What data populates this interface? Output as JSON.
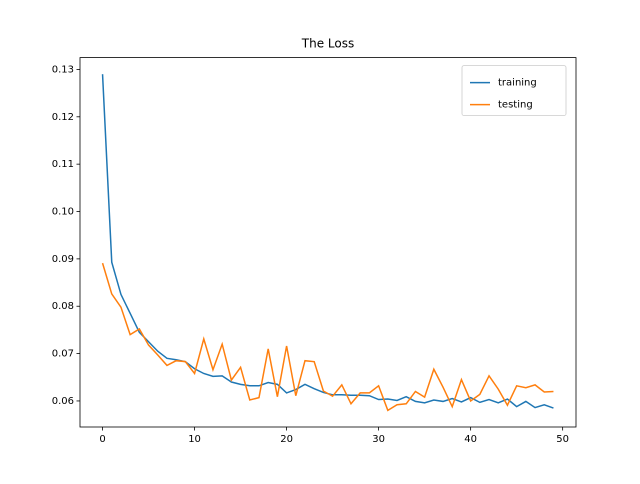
{
  "chart_data": {
    "type": "line",
    "title": "The Loss",
    "x": [
      0,
      1,
      2,
      3,
      4,
      5,
      6,
      7,
      8,
      9,
      10,
      11,
      12,
      13,
      14,
      15,
      16,
      17,
      18,
      19,
      20,
      21,
      22,
      23,
      24,
      25,
      26,
      27,
      28,
      29,
      30,
      31,
      32,
      33,
      34,
      35,
      36,
      37,
      38,
      39,
      40,
      41,
      42,
      43,
      44,
      45,
      46,
      47,
      48,
      49
    ],
    "series": [
      {
        "name": "training",
        "color": "#1f77b4",
        "values": [
          0.129,
          0.0893,
          0.0825,
          0.0785,
          0.0745,
          0.0725,
          0.0705,
          0.069,
          0.0687,
          0.0683,
          0.0668,
          0.0658,
          0.0652,
          0.0653,
          0.064,
          0.0635,
          0.0632,
          0.0632,
          0.0639,
          0.0635,
          0.0617,
          0.0624,
          0.0635,
          0.0626,
          0.0618,
          0.0613,
          0.0613,
          0.0612,
          0.0612,
          0.0611,
          0.0603,
          0.0604,
          0.0601,
          0.0609,
          0.0599,
          0.0596,
          0.0602,
          0.0599,
          0.0605,
          0.0598,
          0.0607,
          0.0597,
          0.0603,
          0.0596,
          0.0604,
          0.0588,
          0.0599,
          0.0586,
          0.0592,
          0.0585
        ]
      },
      {
        "name": "testing",
        "color": "#ff7f0e",
        "values": [
          0.0891,
          0.0826,
          0.0798,
          0.074,
          0.0752,
          0.0718,
          0.0697,
          0.0675,
          0.0685,
          0.0683,
          0.0658,
          0.0731,
          0.0666,
          0.072,
          0.0644,
          0.0671,
          0.0602,
          0.0607,
          0.071,
          0.0609,
          0.0716,
          0.0611,
          0.0685,
          0.0683,
          0.0621,
          0.061,
          0.0634,
          0.0594,
          0.0617,
          0.0617,
          0.0632,
          0.058,
          0.0592,
          0.0594,
          0.062,
          0.0608,
          0.0667,
          0.0629,
          0.0588,
          0.0645,
          0.06,
          0.0614,
          0.0653,
          0.0625,
          0.0591,
          0.0632,
          0.0628,
          0.0634,
          0.0619,
          0.062
        ]
      }
    ],
    "xlim": [
      -2.45,
      51.45
    ],
    "ylim": [
      0.0545,
      0.1325
    ],
    "xticks": [
      0,
      10,
      20,
      30,
      40,
      50
    ],
    "yticks": [
      0.06,
      0.07,
      0.08,
      0.09,
      {
        "value": 0.1,
        "label": "0.10"
      },
      0.11,
      0.12,
      0.13
    ],
    "legend": "upper right"
  }
}
